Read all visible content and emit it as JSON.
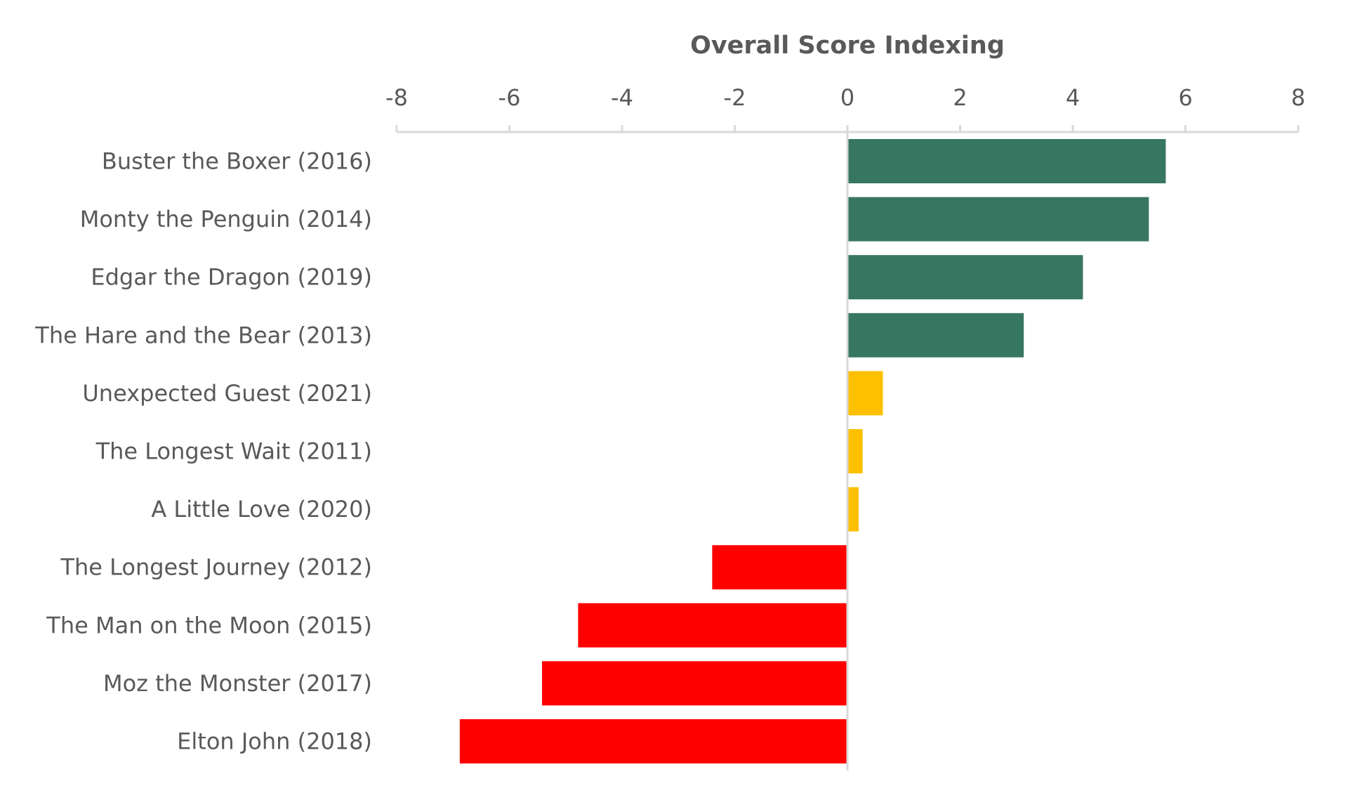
{
  "chart_data": {
    "type": "bar",
    "orientation": "horizontal",
    "title": "Overall Score Indexing",
    "xlabel": "",
    "ylabel": "",
    "xlim": [
      -8,
      8
    ],
    "xticks": [
      -8,
      -6,
      -4,
      -2,
      0,
      2,
      4,
      6,
      8
    ],
    "xaxis_position": "top",
    "grid": false,
    "legend": "none",
    "categories": [
      "Buster the Boxer (2016)",
      "Monty the Penguin (2014)",
      "Edgar the Dragon (2019)",
      "The Hare and the Bear (2013)",
      "Unexpected Guest (2021)",
      "The Longest Wait (2011)",
      "A Little Love (2020)",
      "The Longest Journey (2012)",
      "The Man on the Moon (2015)",
      "Moz the Monster (2017)",
      "Elton John (2018)"
    ],
    "values": [
      5.65,
      5.35,
      4.18,
      3.13,
      0.63,
      0.27,
      0.2,
      -2.4,
      -4.78,
      -5.42,
      -6.88
    ],
    "bar_colors": [
      "#377660",
      "#377660",
      "#377660",
      "#377660",
      "#FFC000",
      "#FFC000",
      "#FFC000",
      "#FF0000",
      "#FF0000",
      "#FF0000",
      "#FF0000"
    ],
    "colors": {
      "positive_high": "#377660",
      "neutral": "#FFC000",
      "negative": "#FF0000",
      "axis": "#D9D9D9",
      "text": "#595959"
    }
  }
}
